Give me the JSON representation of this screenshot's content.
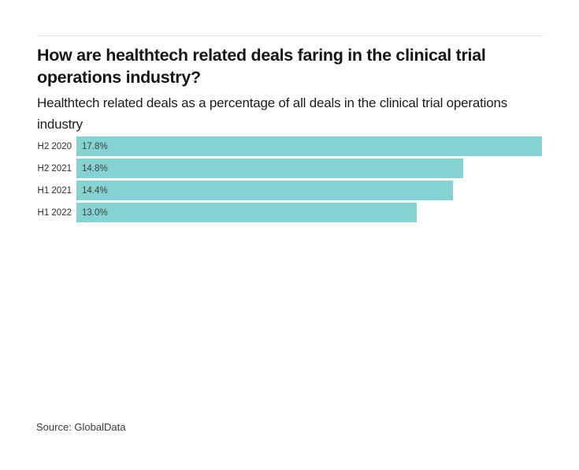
{
  "header": {
    "title": "How are healthtech related deals faring in the clinical trial operations industry?",
    "subtitle": "Healthtech related deals as a percentage of all deals in the clinical trial operations industry"
  },
  "chart_data": {
    "type": "bar",
    "orientation": "horizontal",
    "title": "How are healthtech related deals faring in the clinical trial operations industry?",
    "subtitle": "Healthtech related deals as a percentage of all deals in the clinical trial operations industry",
    "categories": [
      "H2 2020",
      "H2 2021",
      "H1 2021",
      "H1 2022"
    ],
    "values": [
      17.8,
      14.8,
      14.4,
      13.0
    ],
    "value_labels": [
      "17.8%",
      "14.8%",
      "14.4%",
      "13.0%"
    ],
    "xlim": [
      0,
      17.8
    ],
    "grid": false,
    "legend": false,
    "bar_color": "#85d2d2"
  },
  "footer": {
    "source": "Source: GlobalData"
  },
  "colors": {
    "bar": "#85d2d2",
    "title_text": "#161616",
    "subtitle_text": "#1c1c1c",
    "category_label_text": "#2d2d2d",
    "value_label_text": "#3e3e3e",
    "divider": "#e2e2e2",
    "source_text": "#3c3c3c",
    "background": "#ffffff"
  }
}
